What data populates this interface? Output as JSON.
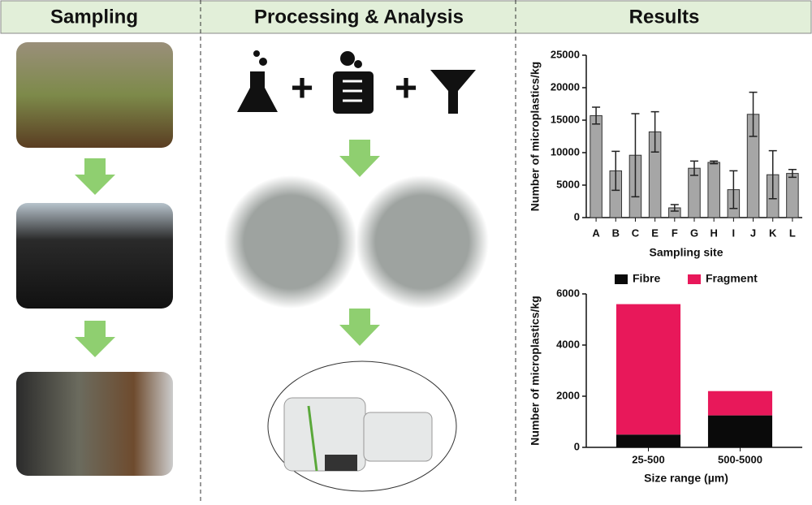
{
  "headers": [
    "Sampling",
    "Processing & Analysis",
    "Results"
  ],
  "chart_data": [
    {
      "type": "bar",
      "ylabel": "Number of microplastics/kg",
      "xlabel": "Sampling site",
      "categories": [
        "A",
        "B",
        "C",
        "E",
        "F",
        "G",
        "H",
        "I",
        "J",
        "K",
        "L"
      ],
      "values": [
        15700,
        7200,
        9600,
        13200,
        1500,
        7600,
        8500,
        4300,
        15900,
        6600,
        6800
      ],
      "errors": [
        1300,
        3000,
        6400,
        3100,
        500,
        1100,
        200,
        2900,
        3400,
        3700,
        600
      ],
      "color": "#a6a6a6",
      "ylim": [
        0,
        25000
      ],
      "yticks": [
        0,
        5000,
        10000,
        15000,
        20000,
        25000
      ]
    },
    {
      "type": "stacked_bar",
      "ylabel": "Number of microplastics/kg",
      "xlabel": "Size range (µm)",
      "categories": [
        "25-500",
        "500-5000"
      ],
      "series": [
        {
          "name": "Fibre",
          "color": "#0a0a0a",
          "values": [
            500,
            1250
          ]
        },
        {
          "name": "Fragment",
          "color": "#e8185a",
          "values": [
            5100,
            950
          ]
        }
      ],
      "ylim": [
        0,
        6000
      ],
      "yticks": [
        0,
        2000,
        4000,
        6000
      ],
      "legend": "top"
    }
  ]
}
